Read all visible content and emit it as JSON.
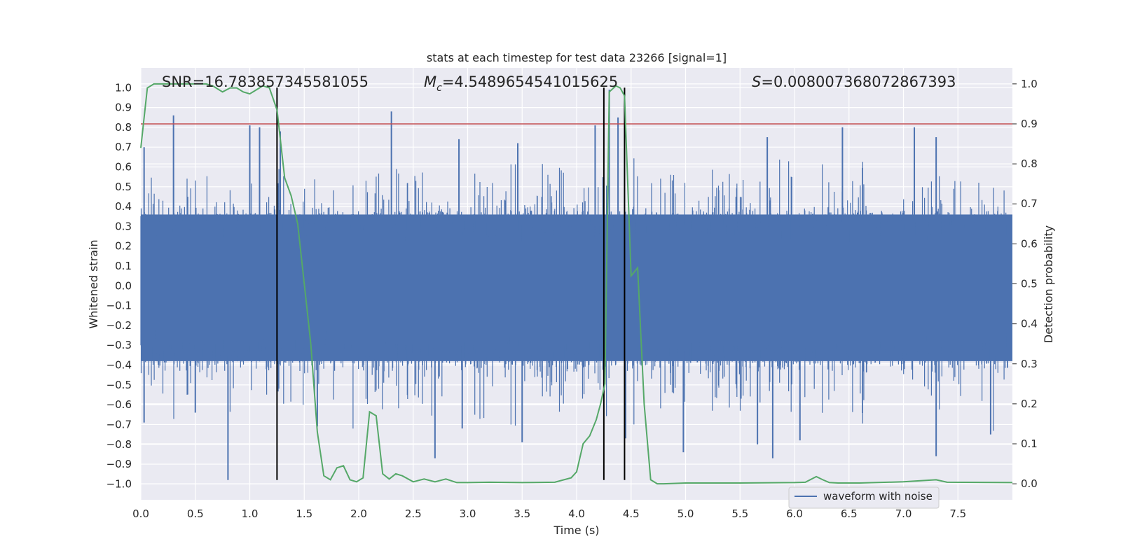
{
  "chart_data": {
    "type": "line",
    "title": "stats at each timestep for test data 23266 [signal=1]",
    "xlabel": "Time (s)",
    "ylabel_left": "Whitened strain",
    "ylabel_right": "Detection probability",
    "xlim": [
      0.0,
      8.0
    ],
    "ylim_left": [
      -1.08,
      1.1
    ],
    "ylim_right": [
      -0.04,
      1.04
    ],
    "x_ticks": [
      "0.0",
      "0.5",
      "1.0",
      "1.5",
      "2.0",
      "2.5",
      "3.0",
      "3.5",
      "4.0",
      "4.5",
      "5.0",
      "5.5",
      "6.0",
      "6.5",
      "7.0",
      "7.5"
    ],
    "y_ticks_left": [
      "−1.0",
      "−0.9",
      "−0.8",
      "−0.7",
      "−0.6",
      "−0.5",
      "−0.4",
      "−0.3",
      "−0.2",
      "−0.1",
      "0.0",
      "0.1",
      "0.2",
      "0.3",
      "0.4",
      "0.5",
      "0.6",
      "0.7",
      "0.8",
      "0.9",
      "1.0"
    ],
    "y_ticks_right": [
      "0.0",
      "0.1",
      "0.2",
      "0.3",
      "0.4",
      "0.5",
      "0.6",
      "0.7",
      "0.8",
      "0.9",
      "1.0"
    ],
    "grid": true,
    "annotations": {
      "snr": "SNR=16.783857345581055",
      "mc_symbol": "M",
      "mc_sub": "c",
      "mc_value": "=4.5489654541015625",
      "s_symbol": "S",
      "s_value": "=0.008007368072867393"
    },
    "threshold_right_axis": 0.9,
    "vertical_lines_time": [
      1.25,
      4.25,
      4.44
    ],
    "series": [
      {
        "name": "waveform with noise",
        "axis": "left",
        "color": "#4c72b0",
        "style": "noise",
        "envelope_core": 0.36,
        "peaks": [
          {
            "t": 0.03,
            "v": 0.7
          },
          {
            "t": 0.3,
            "v": 0.86
          },
          {
            "t": 1.0,
            "v": 0.81
          },
          {
            "t": 1.09,
            "v": 0.8
          },
          {
            "t": 1.28,
            "v": 0.78
          },
          {
            "t": 2.3,
            "v": 0.88
          },
          {
            "t": 4.17,
            "v": 0.81
          },
          {
            "t": 4.3,
            "v": 0.99
          },
          {
            "t": 4.38,
            "v": 0.85
          },
          {
            "t": 6.44,
            "v": 0.8
          },
          {
            "t": 7.1,
            "v": 0.8
          },
          {
            "t": 7.3,
            "v": 0.75
          },
          {
            "t": 5.75,
            "v": 0.75
          },
          {
            "t": 3.46,
            "v": 0.72
          },
          {
            "t": 2.92,
            "v": 0.74
          },
          {
            "t": 0.8,
            "v": -0.98
          },
          {
            "t": 0.03,
            "v": -0.69
          },
          {
            "t": 2.7,
            "v": -0.87
          },
          {
            "t": 5.8,
            "v": -0.87
          },
          {
            "t": 7.3,
            "v": -0.86
          },
          {
            "t": 4.45,
            "v": -0.77
          },
          {
            "t": 3.5,
            "v": -0.79
          },
          {
            "t": 4.98,
            "v": -0.84
          },
          {
            "t": 1.62,
            "v": -0.71
          },
          {
            "t": 6.05,
            "v": -0.78
          },
          {
            "t": 7.8,
            "v": -0.75
          },
          {
            "t": 0.5,
            "v": -0.64
          },
          {
            "t": 2.95,
            "v": -0.72
          },
          {
            "t": 5.66,
            "v": -0.8
          }
        ]
      },
      {
        "name": "detection probability",
        "axis": "right",
        "color": "#55a868",
        "x": [
          0.0,
          0.06,
          0.12,
          0.2,
          0.3,
          0.4,
          0.5,
          0.6,
          0.66,
          0.75,
          0.82,
          0.88,
          0.94,
          1.0,
          1.06,
          1.12,
          1.18,
          1.25,
          1.32,
          1.38,
          1.44,
          1.5,
          1.56,
          1.62,
          1.68,
          1.74,
          1.8,
          1.86,
          1.92,
          1.98,
          2.04,
          2.1,
          2.16,
          2.22,
          2.28,
          2.34,
          2.4,
          2.5,
          2.6,
          2.7,
          2.8,
          2.9,
          3.0,
          3.2,
          3.5,
          3.8,
          3.95,
          4.0,
          4.06,
          4.12,
          4.18,
          4.22,
          4.26,
          4.3,
          4.36,
          4.4,
          4.44,
          4.5,
          4.56,
          4.62,
          4.68,
          4.74,
          4.8,
          5.0,
          5.5,
          6.0,
          6.1,
          6.2,
          6.26,
          6.32,
          6.4,
          6.6,
          7.0,
          7.3,
          7.4,
          8.0
        ],
        "values": [
          0.84,
          0.99,
          1.0,
          1.0,
          1.0,
          1.0,
          1.0,
          1.0,
          0.995,
          0.98,
          0.99,
          0.99,
          0.98,
          0.975,
          0.985,
          0.995,
          0.99,
          0.935,
          0.765,
          0.72,
          0.65,
          0.5,
          0.35,
          0.13,
          0.02,
          0.01,
          0.04,
          0.045,
          0.01,
          0.005,
          0.015,
          0.18,
          0.17,
          0.025,
          0.012,
          0.025,
          0.02,
          0.005,
          0.012,
          0.005,
          0.012,
          0.003,
          0.003,
          0.004,
          0.003,
          0.004,
          0.015,
          0.03,
          0.1,
          0.12,
          0.16,
          0.2,
          0.25,
          0.98,
          0.995,
          0.99,
          0.97,
          0.52,
          0.54,
          0.2,
          0.01,
          0.0,
          0.0,
          0.002,
          0.002,
          0.003,
          0.004,
          0.018,
          0.01,
          0.003,
          0.002,
          0.002,
          0.005,
          0.01,
          0.004,
          0.003
        ]
      }
    ],
    "legend": {
      "location": "bottom-center",
      "entries": [
        "waveform with noise"
      ]
    }
  }
}
